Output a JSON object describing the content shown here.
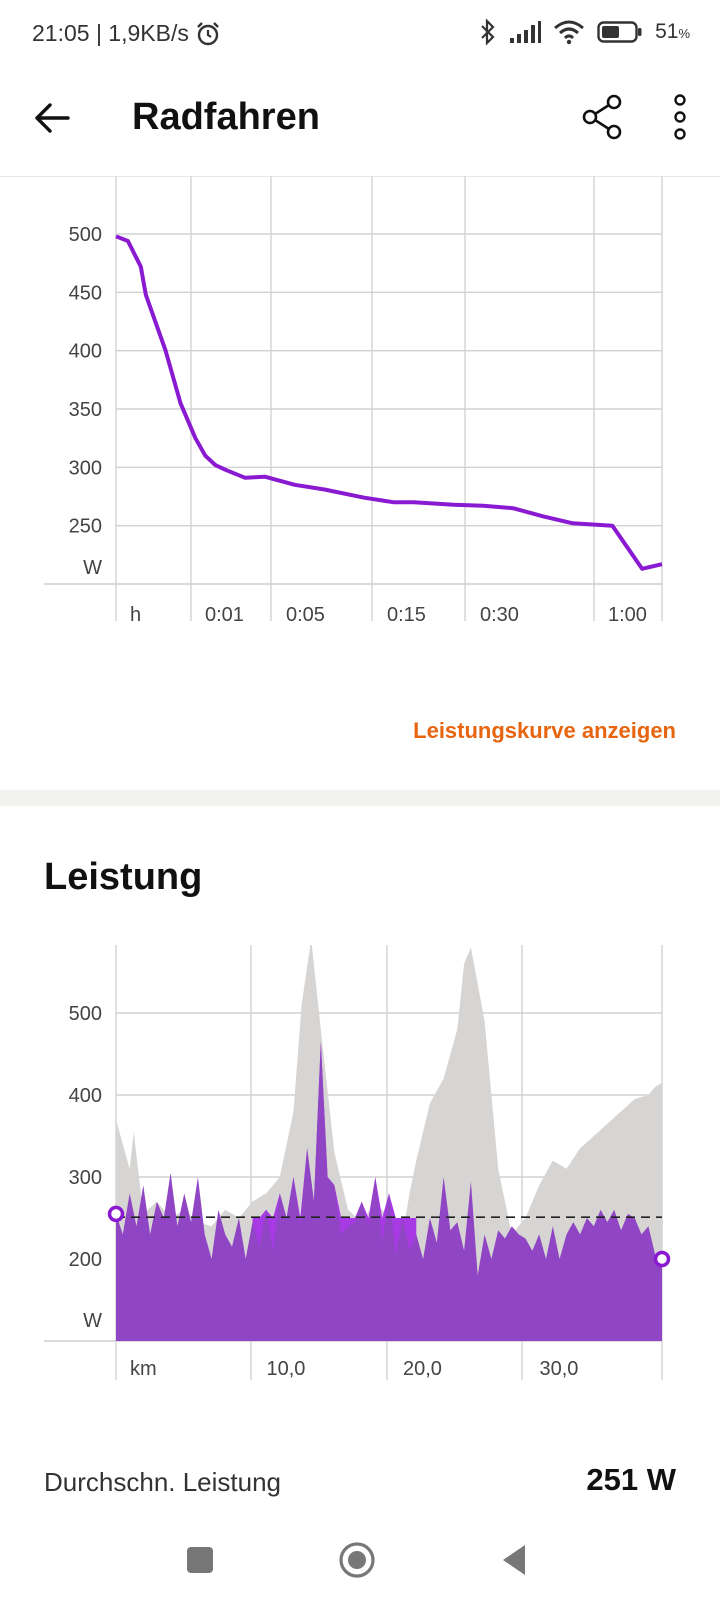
{
  "status_bar": {
    "time_speed": "21:05 | 1,9KB/s",
    "battery_value": "51",
    "battery_unit": "%",
    "icons": [
      "alarm-icon",
      "bluetooth-icon",
      "signal-icon",
      "wifi-icon",
      "battery-icon"
    ]
  },
  "app_bar": {
    "title": "Radfahren",
    "icons": [
      "back-arrow-icon",
      "share-icon",
      "more-vert-icon"
    ]
  },
  "power_curve": {
    "link_label": "Leistungskurve anzeigen"
  },
  "power_section": {
    "title": "Leistung",
    "avg_label": "Durchschn. Leistung",
    "avg_value": "251 W"
  },
  "colors": {
    "accent": "#e8650f",
    "purple": "#8a1ad1",
    "purple_fill": "#8f45c4",
    "purple_bright": "#a83ae6",
    "gray_fill": "#d7d5d3"
  },
  "chart_data": [
    {
      "type": "line",
      "title": "",
      "ylabel": "W",
      "xlabel": "h",
      "yticks": [
        250,
        300,
        350,
        400,
        450,
        500
      ],
      "ylim": [
        200,
        550
      ],
      "x_ticks": [
        "0:01",
        "0:05",
        "0:15",
        "0:30",
        "1:00"
      ],
      "x_unit_label": "h",
      "grid": true,
      "series": [
        {
          "x": [
            0,
            0.12,
            0.25,
            0.3,
            0.5,
            0.65,
            0.8,
            0.9,
            1.0,
            1.1,
            1.3,
            1.5,
            1.8,
            2.1,
            2.5,
            2.8,
            3.0,
            3.4,
            3.7,
            4.0,
            4.3,
            4.6,
            4.8,
            5.0,
            5.3,
            5.5
          ],
          "y": [
            498,
            494,
            472,
            448,
            400,
            355,
            325,
            310,
            302,
            298,
            291,
            292,
            285,
            281,
            274,
            270,
            270,
            268,
            267,
            265,
            258,
            252,
            251,
            250,
            213,
            217
          ]
        }
      ]
    },
    {
      "type": "area",
      "title": "",
      "ylabel": "W",
      "xlabel": "km",
      "yticks": [
        200,
        300,
        400,
        500
      ],
      "ylim": [
        100,
        600
      ],
      "x_ticks": [
        "10,0",
        "20,0",
        "30,0"
      ],
      "xlim": [
        0,
        40
      ],
      "average_line": 251,
      "grid": true,
      "series": [
        {
          "name": "",
          "x": [
            0,
            1,
            1.3,
            2,
            3,
            4,
            5,
            6,
            7,
            8,
            9,
            10,
            11,
            12,
            13,
            13.6,
            14.3,
            15,
            16,
            17,
            18,
            19,
            20,
            20.5,
            21,
            21.5,
            22,
            23,
            24,
            25,
            25.5,
            26,
            27,
            28,
            29,
            30,
            31,
            32,
            33,
            34,
            35,
            36,
            37,
            38,
            39,
            39.5,
            40
          ],
          "y": [
            370,
            310,
            355,
            255,
            270,
            250,
            260,
            245,
            240,
            260,
            250,
            270,
            280,
            300,
            380,
            510,
            590,
            480,
            330,
            260,
            245,
            270,
            250,
            240,
            230,
            280,
            320,
            390,
            420,
            480,
            560,
            580,
            490,
            310,
            230,
            250,
            290,
            320,
            310,
            335,
            350,
            365,
            380,
            395,
            400,
            410,
            415
          ]
        },
        {
          "name": "",
          "x": [
            0,
            0.5,
            1,
            1.5,
            2,
            2.5,
            3,
            3.5,
            4,
            4.5,
            5,
            5.5,
            6,
            6.5,
            7,
            7.5,
            8,
            8.5,
            9,
            9.5,
            10,
            10.5,
            11,
            11.5,
            12,
            12.5,
            13,
            13.5,
            14,
            14.5,
            15,
            15.5,
            16,
            16.5,
            17,
            17.5,
            18,
            18.5,
            19,
            19.5,
            20,
            20.5,
            21,
            21.5,
            22,
            22.5,
            23,
            23.5,
            24,
            24.5,
            25,
            25.5,
            26,
            26.5,
            27,
            27.5,
            28,
            28.5,
            29,
            29.5,
            30,
            30.5,
            31,
            31.5,
            32,
            32.5,
            33,
            33.5,
            34,
            34.5,
            35,
            35.5,
            36,
            36.5,
            37,
            37.5,
            38,
            38.5,
            39,
            39.5,
            40
          ],
          "y": [
            255,
            230,
            280,
            240,
            290,
            230,
            270,
            250,
            305,
            240,
            280,
            245,
            300,
            230,
            200,
            260,
            230,
            215,
            250,
            200,
            245,
            215,
            260,
            210,
            280,
            250,
            300,
            240,
            335,
            270,
            465,
            300,
            290,
            230,
            240,
            245,
            270,
            240,
            300,
            220,
            280,
            205,
            250,
            210,
            230,
            200,
            250,
            220,
            300,
            235,
            245,
            210,
            295,
            180,
            230,
            200,
            235,
            225,
            240,
            230,
            225,
            210,
            230,
            200,
            240,
            200,
            230,
            245,
            230,
            250,
            240,
            260,
            245,
            260,
            235,
            255,
            250,
            230,
            240,
            205,
            200
          ]
        }
      ]
    }
  ],
  "nav_bar": {
    "icons": [
      "recents-square-icon",
      "home-circle-icon",
      "back-triangle-icon"
    ]
  }
}
